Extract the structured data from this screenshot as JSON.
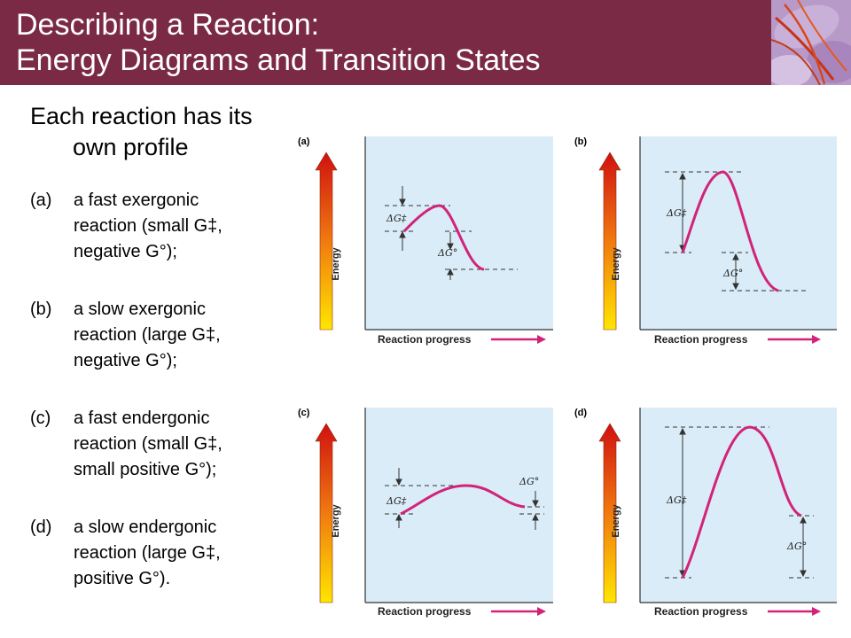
{
  "header": {
    "title_line1": "Describing a Reaction:",
    "title_line2": "Energy Diagrams and Transition States",
    "color": "#7a2a44"
  },
  "intro": {
    "line1": "Each reaction has its",
    "line2": "own profile"
  },
  "items": [
    {
      "tag": "(a)",
      "lines": [
        "a fast exergonic",
        "reaction (small G‡,",
        "negative G°);"
      ]
    },
    {
      "tag": "(b)",
      "lines": [
        "a slow exergonic",
        "reaction (large G‡,",
        "negative G°);"
      ]
    },
    {
      "tag": "(c)",
      "lines": [
        "a fast endergonic",
        "reaction (small G‡,",
        "small positive G°);"
      ]
    },
    {
      "tag": "(d)",
      "lines": [
        "a slow endergonic",
        "reaction (large G‡,",
        "positive G°)."
      ]
    }
  ],
  "diagrams": {
    "energy_label": "Energy",
    "x_label": "Reaction progress",
    "dg_activation": "ΔG‡",
    "dg_standard": "ΔG°",
    "panels": [
      {
        "label": "(a)"
      },
      {
        "label": "(b)"
      },
      {
        "label": "(c)"
      },
      {
        "label": "(d)"
      }
    ],
    "colors": {
      "curve": "#d2237a",
      "panel_bg": "#d9ecf7",
      "arrow_top": "#d01010",
      "arrow_bottom": "#ffe600"
    }
  }
}
